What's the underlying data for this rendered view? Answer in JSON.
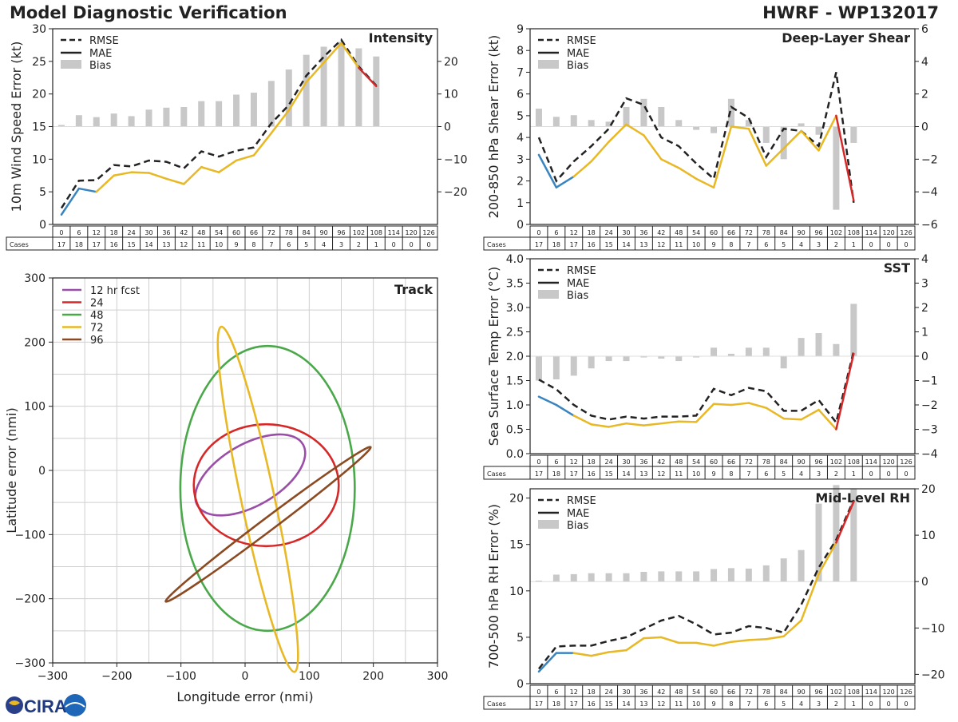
{
  "header": {
    "title": "Model Diagnostic Verification",
    "model": "HWRF - WP132017"
  },
  "logo": {
    "text": "CIRA"
  },
  "colors": {
    "rmse": "#222222",
    "early": "#3a85c0",
    "main": "#e8b825",
    "late": "#d62828",
    "bias": "#c8c8c8",
    "grid": "#cfcfcf"
  },
  "lead_times": [
    "0",
    "6",
    "12",
    "18",
    "24",
    "30",
    "36",
    "42",
    "48",
    "54",
    "60",
    "66",
    "72",
    "78",
    "84",
    "90",
    "96",
    "102",
    "108",
    "114",
    "120",
    "126"
  ],
  "chart_data": [
    {
      "id": "intensity",
      "type": "line",
      "title": "Intensity",
      "ylabel": "10m Wind Speed Error (kt)",
      "ylim": [
        0,
        30
      ],
      "yticks": [
        "0",
        "5",
        "10",
        "15",
        "20",
        "25",
        "30"
      ],
      "y2lim": [
        -30,
        30
      ],
      "y2ticks": [
        "−20",
        "−10",
        "0",
        "10",
        "20"
      ],
      "y2tickvals": [
        -20,
        -10,
        0,
        10,
        20
      ],
      "legend": [
        "RMSE",
        "MAE",
        "Bias"
      ],
      "cases_label": "Cases",
      "cases": [
        "17",
        "18",
        "17",
        "16",
        "15",
        "14",
        "13",
        "12",
        "11",
        "10",
        "9",
        "8",
        "7",
        "6",
        "5",
        "4",
        "3",
        "2",
        "1",
        "0",
        "0",
        "0"
      ],
      "rmse": [
        2.5,
        6.7,
        6.8,
        9.1,
        8.9,
        9.8,
        9.6,
        8.6,
        11.2,
        10.4,
        11.3,
        11.8,
        15.5,
        18.3,
        22.8,
        25.7,
        28.3,
        24.2,
        21.3,
        null,
        null,
        null
      ],
      "mae": [
        1.5,
        5.5,
        5.0,
        7.5,
        8.0,
        7.9,
        7.0,
        6.2,
        8.8,
        8.0,
        9.8,
        10.6,
        14.0,
        17.5,
        21.8,
        24.8,
        27.8,
        24.0,
        21.2,
        null,
        null,
        null
      ],
      "bias": [
        0.5,
        3.5,
        2.9,
        4.0,
        3.2,
        5.2,
        5.8,
        6.0,
        7.8,
        7.8,
        9.8,
        10.4,
        14.0,
        17.5,
        22.0,
        24.5,
        26.0,
        24.0,
        21.5,
        null,
        null,
        null
      ]
    },
    {
      "id": "shear",
      "type": "line",
      "title": "Deep-Layer Shear",
      "ylabel": "200-850 hPa Shear Error (kt)",
      "ylim": [
        0,
        9
      ],
      "yticks": [
        "0",
        "1",
        "2",
        "3",
        "4",
        "5",
        "6",
        "7",
        "8",
        "9"
      ],
      "y2lim": [
        -6,
        6
      ],
      "y2ticks": [
        "−6",
        "−4",
        "−2",
        "0",
        "2",
        "4",
        "6"
      ],
      "y2tickvals": [
        -6,
        -4,
        -2,
        0,
        2,
        4,
        6
      ],
      "legend": [
        "RMSE",
        "MAE",
        "Bias"
      ],
      "cases_label": "Cases",
      "cases": [
        "17",
        "18",
        "17",
        "16",
        "15",
        "14",
        "13",
        "12",
        "11",
        "10",
        "9",
        "8",
        "7",
        "6",
        "5",
        "4",
        "3",
        "2",
        "1",
        "0",
        "0",
        "0"
      ],
      "rmse": [
        4.0,
        2.0,
        2.9,
        3.6,
        4.4,
        5.8,
        5.5,
        4.0,
        3.6,
        2.8,
        2.1,
        5.4,
        4.9,
        3.1,
        4.4,
        4.3,
        3.6,
        7.0,
        1.0,
        null,
        null,
        null
      ],
      "mae": [
        3.2,
        1.7,
        2.2,
        2.9,
        3.8,
        4.6,
        4.1,
        3.0,
        2.6,
        2.1,
        1.7,
        4.5,
        4.4,
        2.7,
        3.5,
        4.3,
        3.4,
        5.0,
        1.1,
        null,
        null,
        null
      ],
      "bias": [
        1.1,
        0.6,
        0.7,
        0.4,
        0.3,
        1.2,
        1.7,
        1.2,
        0.4,
        -0.2,
        -0.4,
        1.7,
        0.4,
        -1.0,
        -2.0,
        0.2,
        -0.5,
        -5.1,
        -1.0,
        null,
        null,
        null
      ]
    },
    {
      "id": "sst",
      "type": "line",
      "title": "SST",
      "ylabel": "Sea Surface Temp Error (°C)",
      "ylim": [
        0,
        4
      ],
      "yticks": [
        "0.0",
        "0.5",
        "1.0",
        "1.5",
        "2.0",
        "2.5",
        "3.0",
        "3.5",
        "4.0"
      ],
      "y2lim": [
        -4,
        4
      ],
      "y2ticks": [
        "−4",
        "−3",
        "−2",
        "−1",
        "0",
        "1",
        "2",
        "3",
        "4"
      ],
      "y2tickvals": [
        -4,
        -3,
        -2,
        -1,
        0,
        1,
        2,
        3,
        4
      ],
      "legend": [
        "RMSE",
        "MAE",
        "Bias"
      ],
      "cases_label": "Cases",
      "cases": [
        "17",
        "18",
        "17",
        "16",
        "15",
        "14",
        "13",
        "12",
        "11",
        "10",
        "9",
        "8",
        "7",
        "6",
        "5",
        "4",
        "3",
        "2",
        "1",
        "0",
        "0",
        "0"
      ],
      "rmse": [
        1.52,
        1.32,
        1.0,
        0.78,
        0.7,
        0.76,
        0.72,
        0.76,
        0.76,
        0.78,
        1.33,
        1.2,
        1.35,
        1.28,
        0.88,
        0.88,
        1.1,
        0.64,
        2.1,
        null,
        null,
        null
      ],
      "mae": [
        1.17,
        1.0,
        0.78,
        0.6,
        0.55,
        0.62,
        0.58,
        0.62,
        0.66,
        0.65,
        1.02,
        1.0,
        1.04,
        0.94,
        0.72,
        0.7,
        0.9,
        0.5,
        2.05,
        null,
        null,
        null
      ],
      "bias": [
        -1.0,
        -0.95,
        -0.8,
        -0.5,
        -0.2,
        -0.2,
        -0.05,
        -0.1,
        -0.2,
        -0.05,
        0.35,
        0.1,
        0.35,
        0.35,
        -0.5,
        0.75,
        0.95,
        0.5,
        2.15,
        null,
        null,
        null
      ]
    },
    {
      "id": "rh",
      "type": "line",
      "title": "Mid-Level RH",
      "ylabel": "700-500 hPa RH Error (%)",
      "ylim": [
        0,
        21
      ],
      "yticks": [
        "0",
        "5",
        "10",
        "15",
        "20"
      ],
      "ytickvals": [
        0,
        5,
        10,
        15,
        20
      ],
      "y2lim": [
        -22,
        20
      ],
      "y2ticks": [
        "−20",
        "−10",
        "0",
        "10",
        "20"
      ],
      "y2tickvals": [
        -20,
        -10,
        0,
        10,
        20
      ],
      "legend": [
        "RMSE",
        "MAE",
        "Bias"
      ],
      "cases_label": "Cases",
      "cases": [
        "17",
        "18",
        "17",
        "16",
        "15",
        "14",
        "13",
        "12",
        "11",
        "10",
        "9",
        "8",
        "7",
        "6",
        "5",
        "4",
        "3",
        "2",
        "1",
        "0",
        "0",
        "0"
      ],
      "rmse": [
        1.6,
        4.0,
        4.1,
        4.1,
        4.6,
        5.0,
        5.9,
        6.8,
        7.3,
        6.4,
        5.3,
        5.5,
        6.2,
        6.0,
        5.5,
        8.5,
        12.5,
        15.5,
        19.8,
        null,
        null,
        null
      ],
      "mae": [
        1.3,
        3.3,
        3.3,
        3.0,
        3.4,
        3.6,
        4.9,
        5.0,
        4.4,
        4.4,
        4.1,
        4.5,
        4.7,
        4.8,
        5.1,
        6.8,
        11.8,
        15.2,
        19.6,
        null,
        null,
        null
      ],
      "bias": [
        0.2,
        1.5,
        1.6,
        1.8,
        1.8,
        1.8,
        2.1,
        2.2,
        2.2,
        2.2,
        2.7,
        2.9,
        2.8,
        3.5,
        5.0,
        6.8,
        16.8,
        20.8,
        20.0,
        null,
        null,
        null
      ]
    },
    {
      "id": "track",
      "type": "scatter",
      "title": "Track",
      "xlabel": "Longitude error (nmi)",
      "ylabel": "Latitude error (nmi)",
      "xlim": [
        -300,
        300
      ],
      "ylim": [
        -300,
        300
      ],
      "xticks": [
        "−300",
        "−200",
        "−100",
        "0",
        "100",
        "200",
        "300"
      ],
      "yticks": [
        "−300",
        "−200",
        "−100",
        "0",
        "100",
        "200",
        "300"
      ],
      "legend_title": "12 hr fcst",
      "ellipses": [
        {
          "label": "12 hr fcst",
          "color": "#9b4ea8",
          "cx": 8,
          "cy": -7,
          "rx": 95,
          "ry": 48,
          "angle": -30
        },
        {
          "label": "24",
          "color": "#d62828",
          "cx": 33,
          "cy": -23,
          "rx": 113,
          "ry": 95,
          "angle": 0
        },
        {
          "label": "48",
          "color": "#4aa84a",
          "cx": 35,
          "cy": -28,
          "rx": 136,
          "ry": 222,
          "angle": 0
        },
        {
          "label": "72",
          "color": "#e8b825",
          "cx": 20,
          "cy": -45,
          "rx": 26,
          "ry": 275,
          "angle": -12
        },
        {
          "label": "96",
          "color": "#8b4a22",
          "cx": 36,
          "cy": -84,
          "rx": 200,
          "ry": 10,
          "angle": -37
        }
      ]
    }
  ]
}
